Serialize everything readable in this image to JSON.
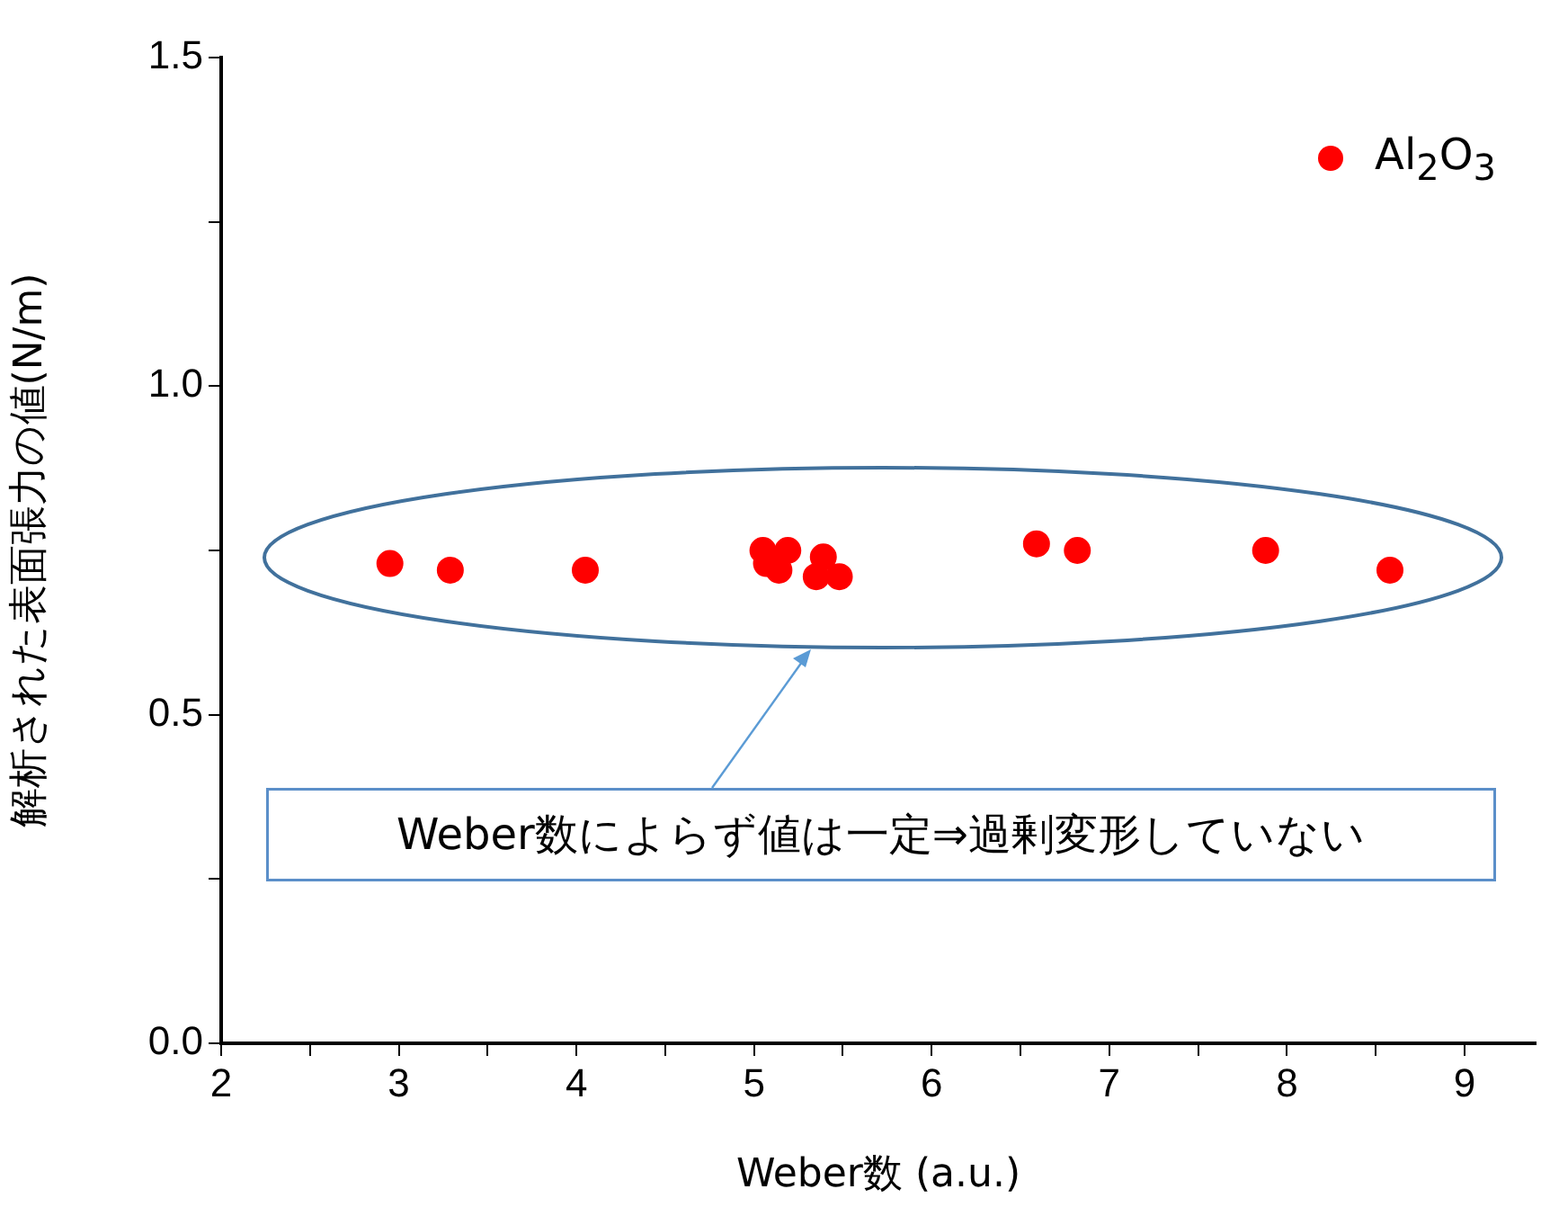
{
  "chart_data": {
    "type": "scatter",
    "xlabel": "Weber数 (a.u.)",
    "ylabel": "解析された表面張力の値(N/m)",
    "series": [
      {
        "name": "Al$_{2}$O$_{3}$",
        "color": "#ff0000",
        "x": [
          2.95,
          3.29,
          4.05,
          5.05,
          5.07,
          5.14,
          5.19,
          5.35,
          5.39,
          5.48,
          6.59,
          6.82,
          7.88,
          8.58
        ],
        "values": [
          0.73,
          0.72,
          0.72,
          0.75,
          0.73,
          0.72,
          0.75,
          0.71,
          0.74,
          0.71,
          0.76,
          0.75,
          0.75,
          0.72
        ]
      }
    ],
    "xlim": [
      2,
      9.4
    ],
    "xticks": [
      2,
      {
        "value": 2.5,
        "label": null
      },
      3,
      {
        "value": 3.5,
        "label": null
      },
      4,
      {
        "value": 4.5,
        "label": null
      },
      5,
      {
        "value": 5.5,
        "label": null
      },
      6,
      {
        "value": 6.5,
        "label": null
      },
      7,
      {
        "value": 7.5,
        "label": null
      },
      8,
      {
        "value": 8.5,
        "label": null
      },
      9
    ],
    "ylim": [
      0,
      1.5
    ],
    "yticks": [
      {
        "value": 0,
        "label": "0.0"
      },
      {
        "value": 0.25,
        "label": null
      },
      {
        "value": 0.5,
        "label": "0.5"
      },
      {
        "value": 0.75,
        "label": null
      },
      {
        "value": 1,
        "label": "1.0"
      },
      {
        "value": 1.25,
        "label": null
      },
      {
        "value": 1.5,
        "label": "1.5"
      }
    ],
    "marker": "circle",
    "legend": "top right",
    "grid": false,
    "annotations": [
      "Weber数によらず値は一定⇒過剰変形していない"
    ]
  }
}
